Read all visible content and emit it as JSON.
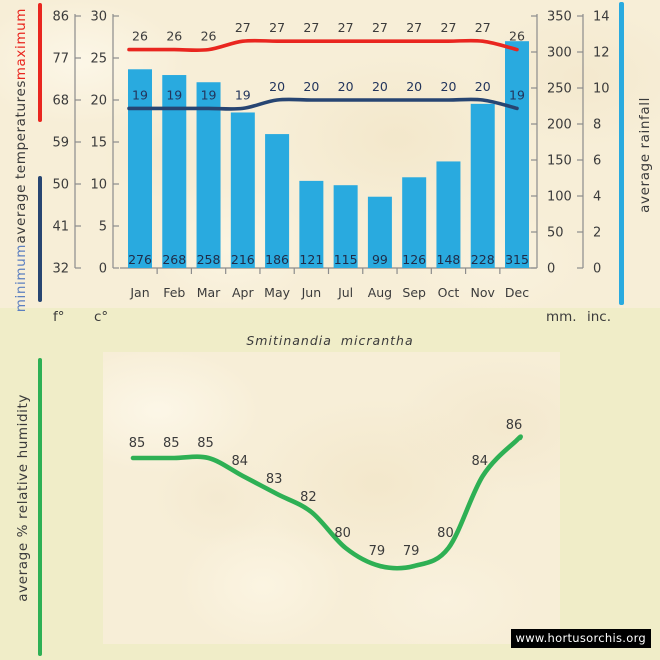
{
  "page": {
    "species_title": "Smitinandia micrantha",
    "watermark": "www.hortusorchis.org"
  },
  "labels": {
    "temperature_axis": {
      "maximum": "maximum",
      "average": "average temperatures",
      "minimum": "minimum"
    },
    "rainfall_axis": "average rainfall",
    "humidity_axis": "average % relative humidity",
    "fahrenheit_unit": "f°",
    "celsius_unit": "c°",
    "millimeters_unit": "mm.",
    "inches_unit": "inc."
  },
  "colors": {
    "rain_bar": "#29aadf",
    "max_line": "#e9261f",
    "min_line": "#274572",
    "humidity_line": "#2eb054",
    "axis_gray": "#8c8c8c",
    "text_dark": "#3b3b3b",
    "min_word_blue": "#5c7fc0",
    "rain_value_text": "#1f2c48",
    "min_value_text": "#23355c",
    "parchment": "#f7eed7",
    "flat_bg": "#f0edc8",
    "watermark_bg": "#000000",
    "watermark_text": "#ffffff"
  },
  "chart_data": [
    {
      "type": "bar",
      "name": "average temperatures and rainfall by month",
      "categories": [
        "Jan",
        "Feb",
        "Mar",
        "Apr",
        "May",
        "Jun",
        "Jul",
        "Aug",
        "Sep",
        "Oct",
        "Nov",
        "Dec"
      ],
      "series": [
        {
          "name": "average rainfall (mm)",
          "type": "bar",
          "values": [
            276,
            268,
            258,
            216,
            186,
            121,
            115,
            99,
            126,
            148,
            228,
            315
          ]
        },
        {
          "name": "maximum average temperature (°C)",
          "type": "line",
          "values": [
            26,
            26,
            26,
            27,
            27,
            27,
            27,
            27,
            27,
            27,
            27,
            26
          ]
        },
        {
          "name": "minimum average temperature (°C)",
          "type": "line",
          "values": [
            19,
            19,
            19,
            19,
            20,
            20,
            20,
            20,
            20,
            20,
            20,
            19
          ]
        }
      ],
      "axes": {
        "celsius_ticks": [
          30,
          25,
          20,
          15,
          10,
          5,
          0
        ],
        "fahrenheit_ticks": [
          86,
          77,
          68,
          59,
          50,
          41,
          32
        ],
        "mm_ticks": [
          350,
          300,
          250,
          200,
          150,
          100,
          50,
          0
        ],
        "inch_ticks": [
          14,
          12,
          10,
          8,
          6,
          4,
          2,
          0
        ],
        "celsius_range": [
          0,
          30
        ],
        "mm_range": [
          0,
          350
        ]
      },
      "grid": false,
      "legend_position": "rotated side labels"
    },
    {
      "type": "line",
      "name": "average % relative humidity",
      "categories": [
        "Jan",
        "Feb",
        "Mar",
        "Apr",
        "May",
        "Jun",
        "Jul",
        "Aug",
        "Sep",
        "Oct",
        "Nov",
        "Dec"
      ],
      "values": [
        85,
        85,
        85,
        84,
        83,
        82,
        80,
        79,
        79,
        80,
        84,
        86
      ],
      "x_axis_visible": false,
      "y_axis_visible": false
    }
  ]
}
